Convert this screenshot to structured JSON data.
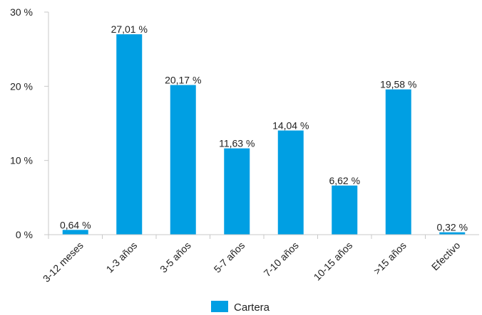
{
  "chart_data": {
    "type": "bar",
    "categories": [
      "3-12 meses",
      "1-3 años",
      "3-5 años",
      "5-7 años",
      "7-10 años",
      "10-15 años",
      ">15 años",
      "Efectivo"
    ],
    "series": [
      {
        "name": "Cartera",
        "values": [
          0.64,
          27.01,
          20.17,
          11.63,
          14.04,
          6.62,
          19.58,
          0.32
        ],
        "labels": [
          "0,64 %",
          "27,01 %",
          "20,17 %",
          "11,63 %",
          "14,04 %",
          "6,62 %",
          "19,58 %",
          "0,32 %"
        ],
        "color": "#009FE3"
      }
    ],
    "yticks": [
      {
        "value": 0,
        "label": "0 %"
      },
      {
        "value": 10,
        "label": "10 %"
      },
      {
        "value": 20,
        "label": "20 %"
      },
      {
        "value": 30,
        "label": "30 %"
      }
    ],
    "ylim": [
      0,
      30
    ],
    "grid": false,
    "legend": "bottom-center"
  }
}
